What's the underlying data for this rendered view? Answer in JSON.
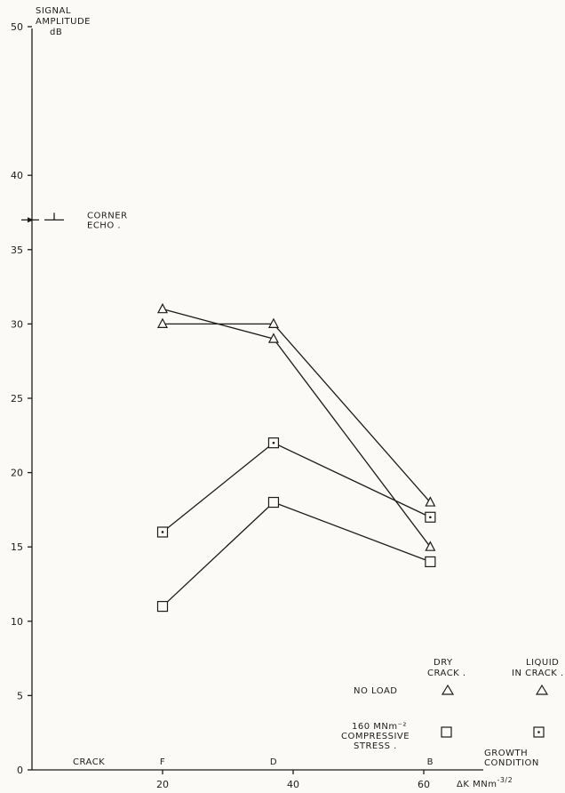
{
  "chart_data": {
    "type": "line",
    "title": "",
    "ylabel_lines": [
      "SIGNAL",
      "AMPLITUDE",
      "dB"
    ],
    "ylim": [
      0,
      50
    ],
    "yticks": [
      0,
      5,
      10,
      15,
      20,
      25,
      30,
      35,
      40,
      50
    ],
    "xlim": [
      0,
      70
    ],
    "xticks": [
      20,
      40,
      60
    ],
    "xlabel_parts": [
      "ΔK",
      "MNm",
      "-3/2"
    ],
    "corner_echo": {
      "value": 37,
      "label_lines": [
        "CORNER",
        "ECHO ."
      ]
    },
    "crack_row": {
      "label": "CRACK",
      "letters": [
        {
          "text": "F",
          "x": 20
        },
        {
          "text": "D",
          "x": 37
        },
        {
          "text": "B",
          "x": 61
        }
      ],
      "end_label_lines": [
        "GROWTH",
        "CONDITION"
      ]
    },
    "series": [
      {
        "marker": "triangle",
        "dotted": false,
        "x": [
          20,
          37,
          61
        ],
        "y": [
          31,
          29,
          15
        ]
      },
      {
        "marker": "triangle",
        "dotted": false,
        "x": [
          20,
          37,
          61
        ],
        "y": [
          30,
          30,
          18
        ]
      },
      {
        "marker": "square",
        "dotted": true,
        "x": [
          20,
          37,
          61
        ],
        "y": [
          16,
          22,
          17
        ]
      },
      {
        "marker": "square",
        "dotted": false,
        "x": [
          20,
          37,
          61
        ],
        "y": [
          11,
          18,
          14
        ]
      }
    ],
    "legend": {
      "placement": "bottom-right",
      "columns": [
        {
          "lines": [
            "DRY",
            "CRACK ."
          ]
        },
        {
          "lines": [
            "LIQUID",
            "IN CRACK ."
          ]
        }
      ],
      "rows": [
        {
          "lines": [
            "NO LOAD"
          ],
          "marker": "triangle"
        },
        {
          "lines": [
            "160 MNm⁻²",
            "COMPRESSIVE",
            "STRESS ."
          ],
          "marker": "square"
        }
      ]
    }
  }
}
